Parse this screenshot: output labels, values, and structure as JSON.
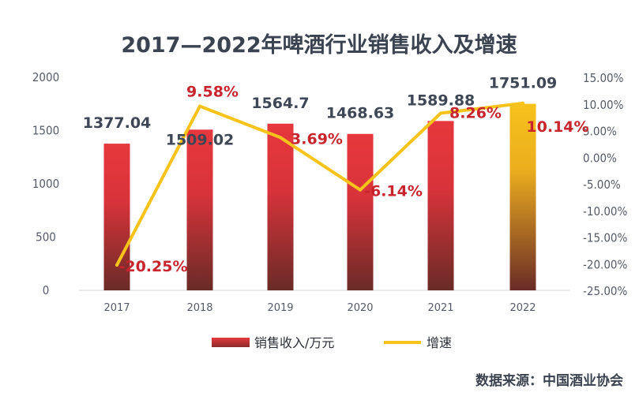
{
  "chart_data": {
    "type": "bar+line",
    "title": "2017—2022年啤酒行业销售收入及增速",
    "categories": [
      "2017",
      "2018",
      "2019",
      "2020",
      "2021",
      "2022"
    ],
    "series": [
      {
        "name": "销售收入/万元",
        "type": "bar",
        "axis": "left",
        "values": [
          1377.04,
          1509.02,
          1564.7,
          1468.63,
          1589.88,
          1751.09
        ],
        "labels": [
          "1377.04",
          "1509.02",
          "1564.7",
          "1468.63",
          "1589.88",
          "1751.09"
        ]
      },
      {
        "name": "增速",
        "type": "line",
        "axis": "right",
        "values": [
          -20.25,
          9.58,
          3.69,
          -6.14,
          8.26,
          10.14
        ],
        "labels": [
          "-20.25%",
          "9.58%",
          "3.69%",
          "-6.14%",
          "8.26%",
          "10.14%"
        ]
      }
    ],
    "y_left": {
      "ylim": [
        0,
        2000
      ],
      "ticks": [
        0,
        500,
        1000,
        1500,
        2000
      ]
    },
    "y_right": {
      "ylim": [
        -25,
        15
      ],
      "ticks": [
        "15.00%",
        "10.00%",
        "5.00%",
        "0.00%",
        "-5.00%",
        "-10.00%",
        "-15.00%",
        "-20.00%",
        "-25.00%"
      ]
    },
    "grid": false,
    "legend_position": "bottom",
    "colors": {
      "bar": "#e0343b",
      "bar_dark": "#6e2a26",
      "bar_highlight": "#f2b81c",
      "line": "#f7c31b",
      "rate_label": "#c8242d"
    },
    "source": "数据来源：中国酒业协会"
  }
}
